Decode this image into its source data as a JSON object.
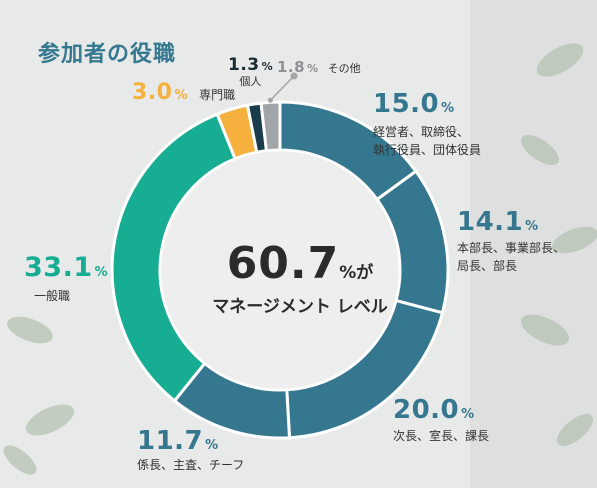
{
  "title": "参加者の役職",
  "center": {
    "value": "60.7",
    "unit": "%が",
    "label": "マネージメント レベル"
  },
  "chart_data": {
    "type": "pie",
    "title": "参加者の役職",
    "unit": "%",
    "series": [
      {
        "percent_text": "15.0",
        "value": 15.0,
        "caption_lines": [
          "経営者、取締役、",
          "執行役員、団体役員"
        ],
        "color": "#367790"
      },
      {
        "percent_text": "14.1",
        "value": 14.1,
        "caption_lines": [
          "本部長、事業部長、",
          "局長、部長"
        ],
        "color": "#367790"
      },
      {
        "percent_text": "20.0",
        "value": 20.0,
        "caption_lines": [
          "次長、室長、課長"
        ],
        "color": "#367790"
      },
      {
        "percent_text": "11.7",
        "value": 11.7,
        "caption_lines": [
          "係長、主査、チーフ"
        ],
        "color": "#367790"
      },
      {
        "percent_text": "33.1",
        "value": 33.1,
        "caption_lines": [
          "一般職"
        ],
        "color": "#16ad92"
      },
      {
        "percent_text": "3.0",
        "value": 3.0,
        "caption_lines": [
          "専門職"
        ],
        "color": "#f5b03d"
      },
      {
        "percent_text": "1.3",
        "value": 1.3,
        "caption_lines": [
          "個人"
        ],
        "color": "#1b3c4c"
      },
      {
        "percent_text": "1.8",
        "value": 1.8,
        "caption_lines": [
          "その他"
        ],
        "color": "#a2a5a7"
      }
    ]
  }
}
